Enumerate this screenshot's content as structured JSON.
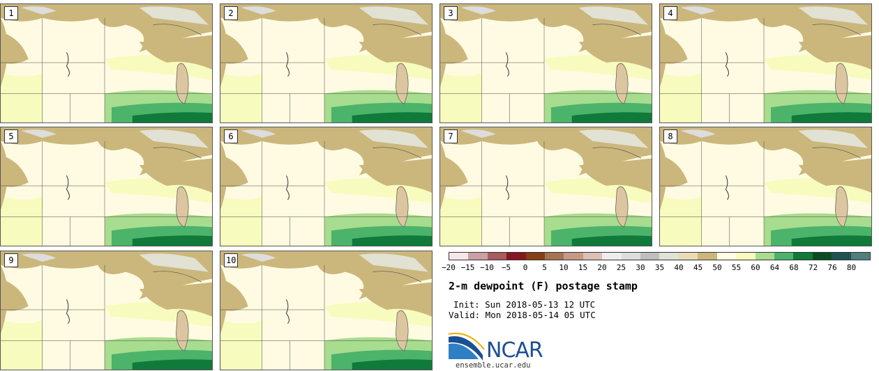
{
  "panels": [
    {
      "label": "1"
    },
    {
      "label": "2"
    },
    {
      "label": "3"
    },
    {
      "label": "4"
    },
    {
      "label": "5"
    },
    {
      "label": "6"
    },
    {
      "label": "7"
    },
    {
      "label": "8"
    },
    {
      "label": "9"
    },
    {
      "label": "10"
    }
  ],
  "colorbar": {
    "colors": [
      "#f7e6e8",
      "#caa0a4",
      "#a85b60",
      "#861721",
      "#863e14",
      "#a67452",
      "#c59a85",
      "#dcc0b4",
      "#ededed",
      "#dddddd",
      "#bfbfbf",
      "#e1e1d4",
      "#e8dcb4",
      "#cbb77c",
      "#fffde5",
      "#f7fbbd",
      "#a8dc8e",
      "#4cb36b",
      "#0f7a3a",
      "#0b4d21",
      "#1f5353",
      "#507f7c"
    ],
    "ticks": [
      "−20",
      "−15",
      "−10",
      "−5",
      "0",
      "5",
      "10",
      "15",
      "20",
      "25",
      "30",
      "35",
      "40",
      "45",
      "50",
      "55",
      "60",
      "64",
      "68",
      "72",
      "76",
      "80"
    ]
  },
  "text": {
    "title": "2-m dewpoint (F) postage stamp",
    "init": "Init: Sun 2018-05-13 12 UTC",
    "valid": "Valid: Mon 2018-05-14 05 UTC",
    "logo": "NCAR",
    "site": "ensemble.ucar.edu"
  }
}
